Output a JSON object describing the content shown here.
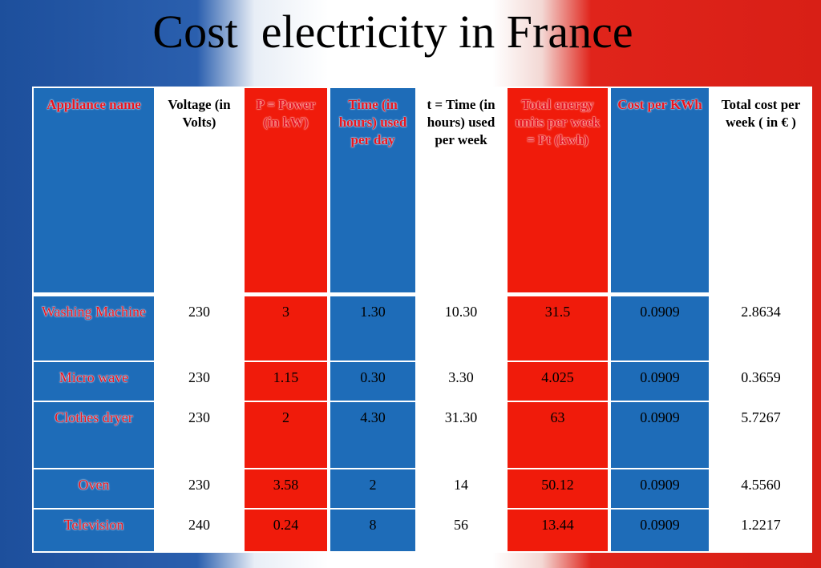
{
  "title": "Cost  electricity in France",
  "table": {
    "header": [
      "Appliance name",
      "Voltage (in Volts)",
      "P = Power (in kW)",
      "Time (in hours) used per day",
      "t = Time (in hours) used per week",
      "Total energy units  per week = Pt (kwh)",
      "Cost per KWh",
      "Total cost per week ( in € )"
    ],
    "rows": [
      [
        "Washing Machine",
        "230",
        "3",
        "1.30",
        "10.30",
        "31.5",
        "0.0909",
        "2.8634"
      ],
      [
        "Micro wave",
        "230",
        "1.15",
        "0.30",
        "3.30",
        "4.025",
        "0.0909",
        "0.3659"
      ],
      [
        "Clothes dryer",
        "230",
        "2",
        "4.30",
        "31.30",
        "63",
        "0.0909",
        "5.7267"
      ],
      [
        "Oven",
        "230",
        "3.58",
        "2",
        "14",
        "50.12",
        "0.0909",
        "4.5560"
      ],
      [
        "Television",
        "240",
        "0.24",
        "8",
        "56",
        "13.44",
        "0.0909",
        "1.2217"
      ]
    ]
  }
}
